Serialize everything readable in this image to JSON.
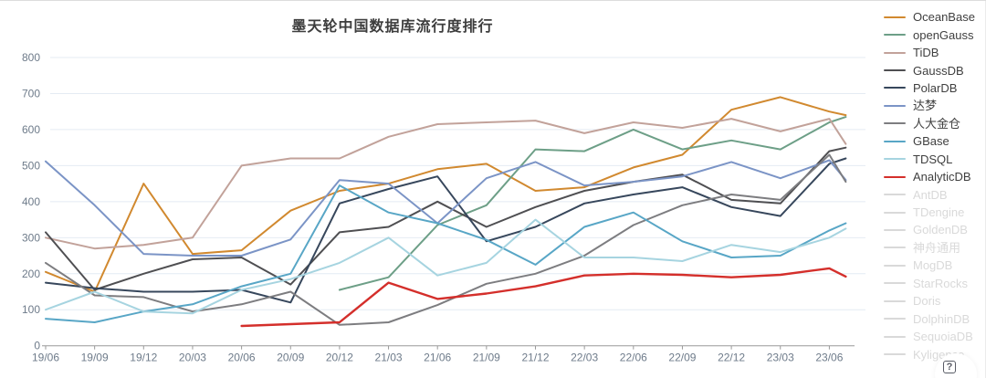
{
  "page": {
    "title": "墨天轮中国数据库流行度排行"
  },
  "help": {
    "glyph": "?"
  },
  "chart_data": {
    "type": "line",
    "title": "墨天轮中国数据库流行度排行",
    "xlabel": "",
    "ylabel": "",
    "ylim": [
      0,
      800
    ],
    "ytick_step": 100,
    "grid": "horizontal",
    "legend_position": "right",
    "categories": [
      "19/06",
      "19/09",
      "19/12",
      "20/03",
      "20/06",
      "20/09",
      "20/12",
      "21/03",
      "21/06",
      "21/09",
      "21/12",
      "22/03",
      "22/06",
      "22/09",
      "22/12",
      "23/03",
      "23/06",
      ""
    ],
    "series": [
      {
        "name": "OceanBase",
        "color": "#d1892f",
        "values": [
          205,
          150,
          450,
          255,
          265,
          375,
          430,
          450,
          490,
          505,
          430,
          440,
          495,
          530,
          655,
          690,
          650,
          640
        ]
      },
      {
        "name": "openGauss",
        "color": "#6d9f87",
        "values": [
          null,
          null,
          null,
          null,
          null,
          null,
          155,
          190,
          335,
          390,
          545,
          540,
          600,
          545,
          570,
          545,
          620,
          635
        ]
      },
      {
        "name": "TiDB",
        "color": "#c2a29a",
        "values": [
          300,
          270,
          280,
          300,
          500,
          520,
          520,
          580,
          615,
          620,
          625,
          590,
          620,
          605,
          630,
          595,
          630,
          560
        ]
      },
      {
        "name": "GaussDB",
        "color": "#4f4f52",
        "values": [
          315,
          155,
          200,
          240,
          245,
          170,
          315,
          330,
          400,
          330,
          385,
          430,
          455,
          475,
          405,
          395,
          540,
          550
        ]
      },
      {
        "name": "PolarDB",
        "color": "#37475c",
        "values": [
          175,
          160,
          150,
          150,
          155,
          120,
          395,
          435,
          470,
          290,
          330,
          395,
          420,
          440,
          385,
          360,
          505,
          520
        ]
      },
      {
        "name": "达梦",
        "color": "#7b94c6",
        "values": [
          512,
          390,
          255,
          250,
          250,
          295,
          460,
          450,
          340,
          465,
          510,
          445,
          455,
          470,
          510,
          465,
          515,
          460
        ]
      },
      {
        "name": "人大金仓",
        "color": "#7d7d80",
        "values": [
          230,
          140,
          135,
          95,
          115,
          150,
          58,
          65,
          113,
          172,
          200,
          250,
          335,
          390,
          420,
          405,
          530,
          455
        ]
      },
      {
        "name": "GBase",
        "color": "#58a6c6",
        "values": [
          75,
          65,
          95,
          115,
          165,
          200,
          445,
          370,
          340,
          294,
          225,
          330,
          370,
          290,
          245,
          250,
          320,
          340
        ]
      },
      {
        "name": "TDSQL",
        "color": "#a6d4e0",
        "values": [
          100,
          150,
          95,
          90,
          155,
          185,
          230,
          300,
          195,
          230,
          350,
          245,
          245,
          235,
          280,
          260,
          300,
          325
        ]
      },
      {
        "name": "AnalyticDB",
        "color": "#d42f2b",
        "values": [
          null,
          null,
          null,
          null,
          55,
          60,
          65,
          175,
          130,
          145,
          165,
          195,
          200,
          197,
          190,
          197,
          215,
          192
        ]
      }
    ],
    "disabled_series": [
      "AntDB",
      "TDengine",
      "GoldenDB",
      "神舟通用",
      "MogDB",
      "StarRocks",
      "Doris",
      "DolphinDB",
      "SequoiaDB",
      "Kyligence"
    ],
    "disabled_color": "#d9d9d9",
    "axis_color": "#999999",
    "grid_color": "#e4ebf3",
    "label_color": "#6e7b8a"
  }
}
